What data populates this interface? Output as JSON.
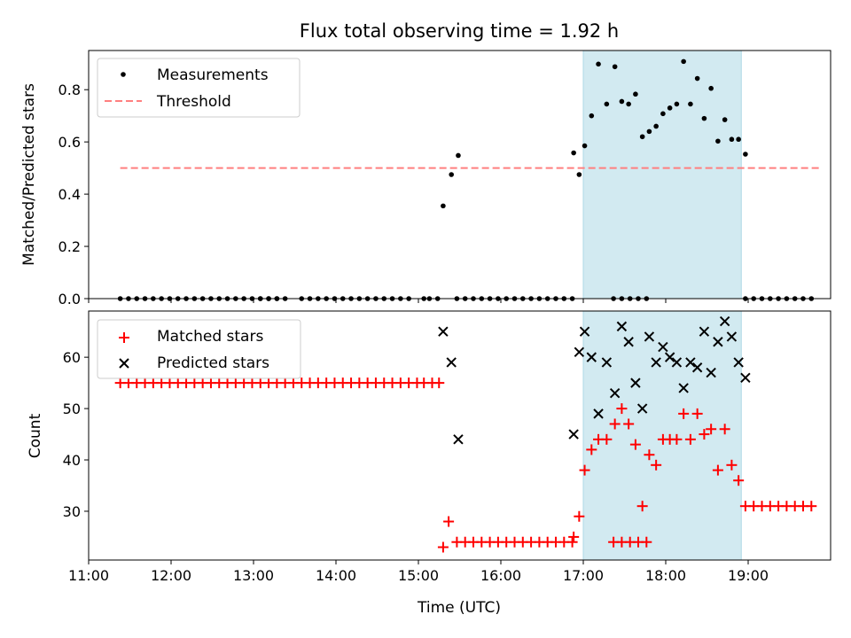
{
  "title": "Flux total observing time = 1.92 h",
  "shade_color": "#add8e6",
  "colors": {
    "measurement": "#000000",
    "threshold": "#ff7f7f",
    "matched": "#ff0000",
    "predicted": "#000000"
  },
  "chart_data": [
    {
      "type": "scatter",
      "xlabel": "",
      "ylabel": "Matched/Predicted stars",
      "ylim": [
        0,
        0.95
      ],
      "yticks": [
        0.0,
        0.2,
        0.4,
        0.6,
        0.8
      ],
      "ytick_labels": [
        "0.0",
        "0.2",
        "0.4",
        "0.6",
        "0.8"
      ],
      "xlim": [
        660,
        1200
      ],
      "shaded_span": [
        1020,
        1135
      ],
      "legend_position": "top-left",
      "series": [
        {
          "name": "Measurements",
          "points": [
            [
              683,
              0
            ],
            [
              689,
              0
            ],
            [
              695,
              0
            ],
            [
              701,
              0
            ],
            [
              707,
              0
            ],
            [
              713,
              0
            ],
            [
              719,
              0
            ],
            [
              725,
              0
            ],
            [
              731,
              0
            ],
            [
              737,
              0
            ],
            [
              743,
              0
            ],
            [
              749,
              0
            ],
            [
              755,
              0
            ],
            [
              761,
              0
            ],
            [
              767,
              0
            ],
            [
              773,
              0
            ],
            [
              779,
              0
            ],
            [
              785,
              0
            ],
            [
              791,
              0
            ],
            [
              797,
              0
            ],
            [
              785,
              0
            ],
            [
              791,
              0
            ],
            [
              797,
              0
            ],
            [
              803,
              0
            ],
            [
              815,
              0
            ],
            [
              821,
              0
            ],
            [
              827,
              0
            ],
            [
              833,
              0
            ],
            [
              839,
              0
            ],
            [
              845,
              0
            ],
            [
              851,
              0
            ],
            [
              857,
              0
            ],
            [
              863,
              0
            ],
            [
              869,
              0
            ],
            [
              875,
              0
            ],
            [
              881,
              0
            ],
            [
              887,
              0
            ],
            [
              893,
              0
            ],
            [
              904,
              0
            ],
            [
              908,
              0
            ],
            [
              914,
              0
            ],
            [
              928,
              0
            ],
            [
              934,
              0
            ],
            [
              940,
              0
            ],
            [
              946,
              0
            ],
            [
              952,
              0
            ],
            [
              958,
              0
            ],
            [
              964,
              0
            ],
            [
              970,
              0
            ],
            [
              976,
              0
            ],
            [
              982,
              0
            ],
            [
              988,
              0
            ],
            [
              994,
              0
            ],
            [
              1000,
              0
            ],
            [
              1006,
              0
            ],
            [
              1012,
              0
            ],
            [
              1042,
              0
            ],
            [
              1048,
              0
            ],
            [
              1054,
              0
            ],
            [
              1060,
              0
            ],
            [
              1066,
              0
            ],
            [
              1138,
              0
            ],
            [
              1144,
              0
            ],
            [
              1150,
              0
            ],
            [
              1156,
              0
            ],
            [
              1162,
              0
            ],
            [
              1168,
              0
            ],
            [
              1174,
              0
            ],
            [
              1180,
              0
            ],
            [
              1186,
              0
            ],
            [
              918,
              0.355
            ],
            [
              924,
              0.475
            ],
            [
              929,
              0.548
            ],
            [
              1013,
              0.558
            ],
            [
              1017,
              0.475
            ],
            [
              1021,
              0.585
            ],
            [
              1026,
              0.7
            ],
            [
              1031,
              0.898
            ],
            [
              1037,
              0.745
            ],
            [
              1043,
              0.888
            ],
            [
              1048,
              0.755
            ],
            [
              1053,
              0.745
            ],
            [
              1058,
              0.783
            ],
            [
              1063,
              0.62
            ],
            [
              1068,
              0.64
            ],
            [
              1073,
              0.66
            ],
            [
              1078,
              0.708
            ],
            [
              1083,
              0.73
            ],
            [
              1088,
              0.745
            ],
            [
              1093,
              0.908
            ],
            [
              1098,
              0.745
            ],
            [
              1103,
              0.843
            ],
            [
              1108,
              0.69
            ],
            [
              1113,
              0.805
            ],
            [
              1118,
              0.603
            ],
            [
              1123,
              0.685
            ],
            [
              1128,
              0.61
            ],
            [
              1133,
              0.61
            ],
            [
              1138,
              0.553
            ]
          ]
        },
        {
          "name": "Threshold",
          "style": "dashed",
          "points": [
            [
              683,
              0.5
            ],
            [
              1192,
              0.5
            ]
          ]
        }
      ]
    },
    {
      "type": "scatter",
      "xlabel": "Time (UTC)",
      "ylabel": "Count",
      "ylim": [
        20.5,
        69
      ],
      "yticks": [
        30,
        40,
        50,
        60
      ],
      "ytick_labels": [
        "30",
        "40",
        "50",
        "60"
      ],
      "xlim": [
        660,
        1200
      ],
      "xticks": [
        660,
        720,
        780,
        840,
        900,
        960,
        1020,
        1080,
        1140
      ],
      "xtick_labels": [
        "11:00",
        "12:00",
        "13:00",
        "14:00",
        "15:00",
        "16:00",
        "17:00",
        "18:00",
        "19:00"
      ],
      "shaded_span": [
        1020,
        1135
      ],
      "legend_position": "top-left",
      "series": [
        {
          "name": "Matched stars",
          "marker": "plus",
          "points": [
            [
              683,
              55
            ],
            [
              689,
              55
            ],
            [
              695,
              55
            ],
            [
              701,
              55
            ],
            [
              707,
              55
            ],
            [
              713,
              55
            ],
            [
              719,
              55
            ],
            [
              725,
              55
            ],
            [
              731,
              55
            ],
            [
              737,
              55
            ],
            [
              743,
              55
            ],
            [
              749,
              55
            ],
            [
              755,
              55
            ],
            [
              761,
              55
            ],
            [
              767,
              55
            ],
            [
              773,
              55
            ],
            [
              779,
              55
            ],
            [
              785,
              55
            ],
            [
              791,
              55
            ],
            [
              797,
              55
            ],
            [
              803,
              55
            ],
            [
              809,
              55
            ],
            [
              815,
              55
            ],
            [
              821,
              55
            ],
            [
              827,
              55
            ],
            [
              833,
              55
            ],
            [
              839,
              55
            ],
            [
              845,
              55
            ],
            [
              851,
              55
            ],
            [
              857,
              55
            ],
            [
              863,
              55
            ],
            [
              869,
              55
            ],
            [
              875,
              55
            ],
            [
              881,
              55
            ],
            [
              887,
              55
            ],
            [
              893,
              55
            ],
            [
              899,
              55
            ],
            [
              904,
              55
            ],
            [
              910,
              55
            ],
            [
              915,
              55
            ],
            [
              918,
              23
            ],
            [
              922,
              28
            ],
            [
              928,
              24
            ],
            [
              934,
              24
            ],
            [
              940,
              24
            ],
            [
              946,
              24
            ],
            [
              952,
              24
            ],
            [
              958,
              24
            ],
            [
              964,
              24
            ],
            [
              970,
              24
            ],
            [
              976,
              24
            ],
            [
              982,
              24
            ],
            [
              988,
              24
            ],
            [
              994,
              24
            ],
            [
              1000,
              24
            ],
            [
              1006,
              24
            ],
            [
              1012,
              24
            ],
            [
              1042,
              24
            ],
            [
              1048,
              24
            ],
            [
              1054,
              24
            ],
            [
              1060,
              24
            ],
            [
              1066,
              24
            ],
            [
              1013,
              25
            ],
            [
              1017,
              29
            ],
            [
              1021,
              38
            ],
            [
              1026,
              42
            ],
            [
              1031,
              44
            ],
            [
              1037,
              44
            ],
            [
              1043,
              47
            ],
            [
              1048,
              50
            ],
            [
              1053,
              47
            ],
            [
              1058,
              43
            ],
            [
              1063,
              31
            ],
            [
              1068,
              41
            ],
            [
              1073,
              39
            ],
            [
              1078,
              44
            ],
            [
              1083,
              44
            ],
            [
              1088,
              44
            ],
            [
              1093,
              49
            ],
            [
              1098,
              44
            ],
            [
              1103,
              49
            ],
            [
              1108,
              45
            ],
            [
              1113,
              46
            ],
            [
              1118,
              38
            ],
            [
              1123,
              46
            ],
            [
              1128,
              39
            ],
            [
              1133,
              36
            ],
            [
              1138,
              31
            ],
            [
              1144,
              31
            ],
            [
              1150,
              31
            ],
            [
              1156,
              31
            ],
            [
              1162,
              31
            ],
            [
              1168,
              31
            ],
            [
              1174,
              31
            ],
            [
              1180,
              31
            ],
            [
              1186,
              31
            ]
          ]
        },
        {
          "name": "Predicted stars",
          "marker": "x",
          "points": [
            [
              918,
              65
            ],
            [
              924,
              59
            ],
            [
              929,
              44
            ],
            [
              1013,
              45
            ],
            [
              1017,
              61
            ],
            [
              1021,
              65
            ],
            [
              1026,
              60
            ],
            [
              1031,
              49
            ],
            [
              1037,
              59
            ],
            [
              1043,
              53
            ],
            [
              1048,
              66
            ],
            [
              1053,
              63
            ],
            [
              1058,
              55
            ],
            [
              1063,
              50
            ],
            [
              1068,
              64
            ],
            [
              1073,
              59
            ],
            [
              1078,
              62
            ],
            [
              1083,
              60
            ],
            [
              1088,
              59
            ],
            [
              1093,
              54
            ],
            [
              1098,
              59
            ],
            [
              1103,
              58
            ],
            [
              1108,
              65
            ],
            [
              1113,
              57
            ],
            [
              1118,
              63
            ],
            [
              1123,
              67
            ],
            [
              1128,
              64
            ],
            [
              1133,
              59
            ],
            [
              1138,
              56
            ]
          ]
        }
      ]
    }
  ]
}
